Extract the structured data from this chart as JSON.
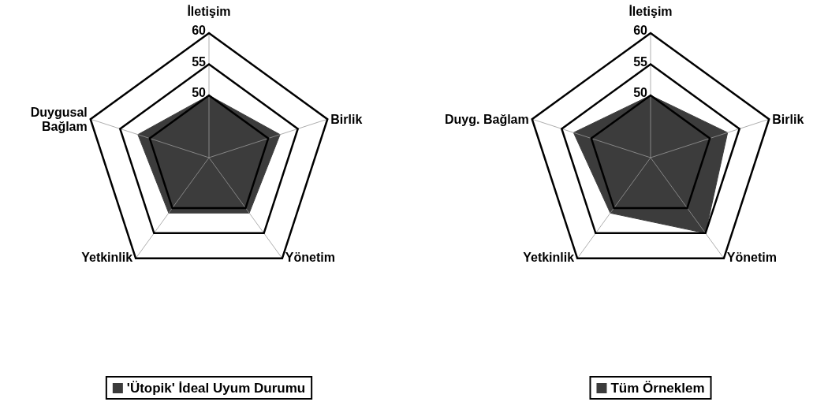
{
  "chart_data": [
    {
      "type": "radar",
      "categories": [
        "İletişim",
        "Birlik",
        "Yönetim",
        "Yetkinlik",
        "Duygusal\nBağlam"
      ],
      "ylim": [
        40,
        60
      ],
      "yticks": [
        50,
        55,
        60
      ],
      "legend": "bottom",
      "series": [
        {
          "name": "'Ütopik' İdeal Uyum Durumu",
          "color": "#3c3c3c",
          "values": [
            50,
            52,
            51,
            51,
            52
          ]
        }
      ]
    },
    {
      "type": "radar",
      "categories": [
        "İletişim",
        "Birlik",
        "Yönetim",
        "Yetkinlik",
        "Duyg. Bağlam"
      ],
      "ylim": [
        40,
        60
      ],
      "yticks": [
        50,
        55,
        60
      ],
      "legend": "bottom",
      "series": [
        {
          "name": "Tüm Örneklem",
          "color": "#3c3c3c",
          "values": [
            50,
            53,
            55,
            51,
            53
          ]
        }
      ]
    }
  ]
}
